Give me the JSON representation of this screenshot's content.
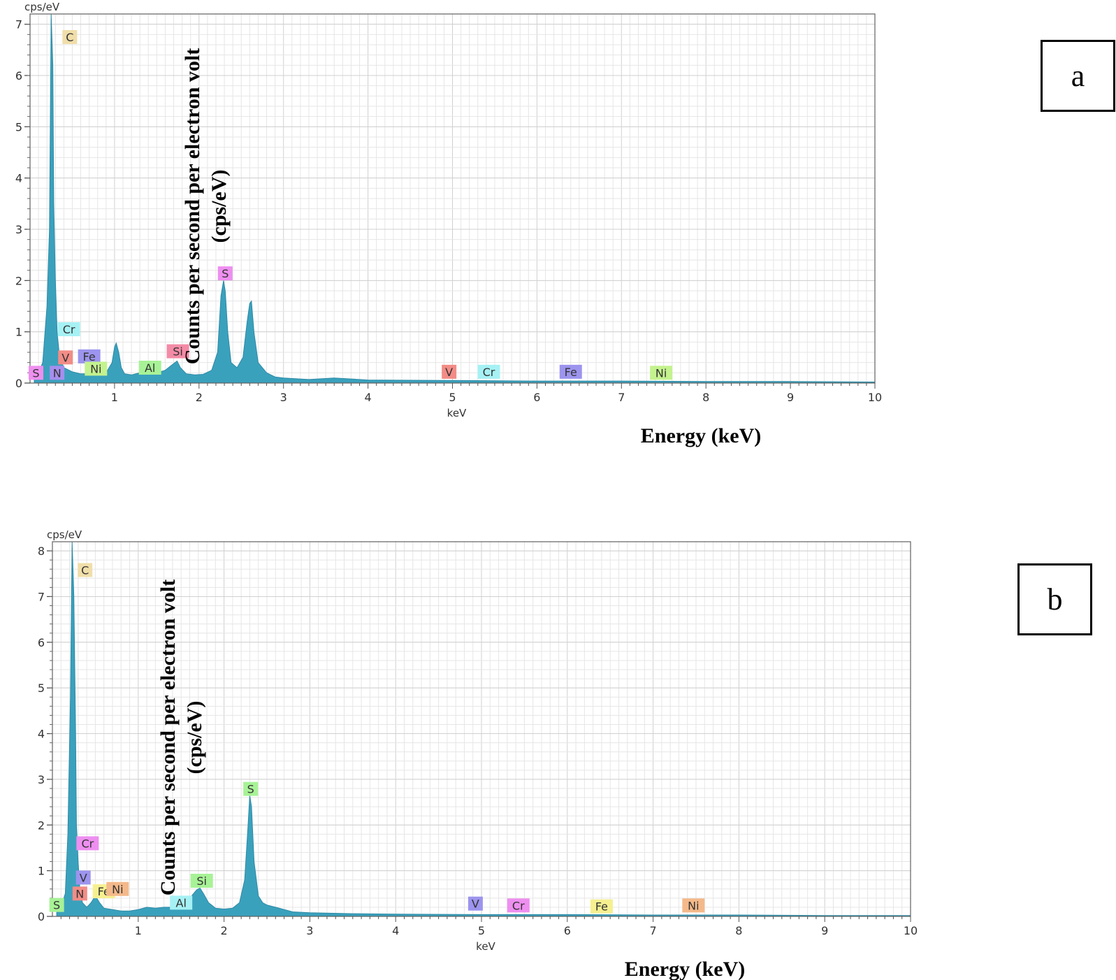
{
  "chart_data": [
    {
      "type": "area",
      "panel_label": "a",
      "unit_label": "cps/eV",
      "xlabel": "keV",
      "energy_caption": "Energy (keV)",
      "ylabel_overlay": [
        "Counts per second per electron volt",
        "(cps/eV)"
      ],
      "xlim": [
        0,
        10
      ],
      "ylim": [
        0,
        7.2
      ],
      "x_ticks": [
        1,
        2,
        3,
        4,
        5,
        6,
        7,
        8,
        9,
        10
      ],
      "y_ticks": [
        0,
        1,
        2,
        3,
        4,
        5,
        6,
        7
      ],
      "grid": true,
      "series": [
        {
          "name": "spectrum",
          "color": "#3aa1bd",
          "x": [
            0.05,
            0.1,
            0.15,
            0.2,
            0.23,
            0.25,
            0.27,
            0.28,
            0.3,
            0.32,
            0.35,
            0.4,
            0.5,
            0.6,
            0.7,
            0.8,
            0.9,
            0.97,
            1.0,
            1.02,
            1.05,
            1.08,
            1.12,
            1.2,
            1.3,
            1.4,
            1.5,
            1.6,
            1.7,
            1.74,
            1.78,
            1.85,
            1.95,
            2.05,
            2.15,
            2.22,
            2.26,
            2.29,
            2.31,
            2.34,
            2.38,
            2.45,
            2.52,
            2.57,
            2.6,
            2.62,
            2.65,
            2.7,
            2.8,
            2.9,
            3.0,
            3.3,
            3.6,
            4.0,
            5.0,
            6.0,
            7.0,
            8.0,
            9.0,
            10.0
          ],
          "y": [
            0.15,
            0.2,
            0.4,
            1.5,
            3.0,
            7.2,
            6.2,
            3.5,
            2.0,
            1.0,
            0.5,
            0.3,
            0.22,
            0.18,
            0.18,
            0.17,
            0.2,
            0.4,
            0.7,
            0.78,
            0.6,
            0.3,
            0.18,
            0.16,
            0.2,
            0.22,
            0.2,
            0.25,
            0.38,
            0.43,
            0.3,
            0.18,
            0.16,
            0.17,
            0.25,
            0.6,
            1.7,
            2.0,
            1.8,
            1.0,
            0.4,
            0.3,
            0.5,
            1.2,
            1.55,
            1.6,
            1.0,
            0.4,
            0.2,
            0.12,
            0.1,
            0.07,
            0.1,
            0.06,
            0.05,
            0.04,
            0.04,
            0.03,
            0.03,
            0.02
          ]
        }
      ],
      "annotations": [
        {
          "text": "C",
          "x": 0.47,
          "y": 6.75,
          "color": "#f0deaa"
        },
        {
          "text": "Cr",
          "x": 0.46,
          "y": 1.05,
          "color": "#a6f1f4"
        },
        {
          "text": "V",
          "x": 0.42,
          "y": 0.5,
          "color": "#f28c86"
        },
        {
          "text": "Fe",
          "x": 0.7,
          "y": 0.52,
          "color": "#9c94ee"
        },
        {
          "text": "S",
          "x": 0.07,
          "y": 0.2,
          "color": "#ee8ff0"
        },
        {
          "text": "N",
          "x": 0.32,
          "y": 0.2,
          "color": "#a68eee"
        },
        {
          "text": "Ni",
          "x": 0.78,
          "y": 0.28,
          "color": "#c3f28e"
        },
        {
          "text": "Al",
          "x": 1.42,
          "y": 0.3,
          "color": "#a7f296"
        },
        {
          "text": "Si",
          "x": 1.75,
          "y": 0.62,
          "color": "#f48ba6"
        },
        {
          "text": "S",
          "x": 2.31,
          "y": 2.14,
          "color": "#ee8ff0"
        },
        {
          "text": "V",
          "x": 4.96,
          "y": 0.22,
          "color": "#f28c86"
        },
        {
          "text": "Cr",
          "x": 5.43,
          "y": 0.22,
          "color": "#a6f1f4"
        },
        {
          "text": "Fe",
          "x": 6.4,
          "y": 0.22,
          "color": "#9c94ee"
        },
        {
          "text": "Ni",
          "x": 7.47,
          "y": 0.2,
          "color": "#c3f28e"
        }
      ]
    },
    {
      "type": "area",
      "panel_label": "b",
      "unit_label": "cps/eV",
      "xlabel": "keV",
      "energy_caption": "Energy (keV)",
      "ylabel_overlay": [
        "Counts per second per electron volt",
        "(cps/eV)"
      ],
      "xlim": [
        0,
        10
      ],
      "ylim": [
        0,
        8.2
      ],
      "x_ticks": [
        1,
        2,
        3,
        4,
        5,
        6,
        7,
        8,
        9,
        10
      ],
      "y_ticks": [
        0,
        1,
        2,
        3,
        4,
        5,
        6,
        7,
        8
      ],
      "grid": true,
      "series": [
        {
          "name": "spectrum",
          "color": "#3aa1bd",
          "x": [
            0.05,
            0.1,
            0.15,
            0.18,
            0.21,
            0.23,
            0.25,
            0.27,
            0.28,
            0.3,
            0.32,
            0.35,
            0.4,
            0.45,
            0.5,
            0.55,
            0.6,
            0.7,
            0.8,
            0.9,
            1.0,
            1.1,
            1.2,
            1.3,
            1.4,
            1.5,
            1.6,
            1.68,
            1.72,
            1.76,
            1.82,
            1.9,
            2.0,
            2.1,
            2.18,
            2.24,
            2.28,
            2.3,
            2.32,
            2.35,
            2.4,
            2.45,
            2.5,
            2.6,
            2.8,
            3.0,
            3.5,
            4.0,
            5.0,
            6.0,
            7.0,
            8.0,
            9.0,
            10.0
          ],
          "y": [
            0.15,
            0.2,
            0.5,
            1.8,
            4.8,
            8.2,
            7.0,
            4.0,
            2.0,
            1.2,
            0.6,
            0.3,
            0.2,
            0.3,
            0.45,
            0.3,
            0.18,
            0.15,
            0.12,
            0.12,
            0.15,
            0.2,
            0.18,
            0.2,
            0.2,
            0.22,
            0.4,
            0.58,
            0.62,
            0.5,
            0.3,
            0.18,
            0.16,
            0.18,
            0.3,
            0.8,
            2.0,
            2.65,
            2.4,
            1.2,
            0.45,
            0.3,
            0.25,
            0.2,
            0.1,
            0.08,
            0.06,
            0.05,
            0.04,
            0.04,
            0.03,
            0.03,
            0.02,
            0.02
          ]
        }
      ],
      "annotations": [
        {
          "text": "C",
          "x": 0.38,
          "y": 7.58,
          "color": "#f0deaa"
        },
        {
          "text": "Cr",
          "x": 0.41,
          "y": 1.6,
          "color": "#ee8ff0"
        },
        {
          "text": "V",
          "x": 0.36,
          "y": 0.85,
          "color": "#9c94ee"
        },
        {
          "text": "N",
          "x": 0.32,
          "y": 0.5,
          "color": "#f28c86"
        },
        {
          "text": "Fe",
          "x": 0.6,
          "y": 0.55,
          "color": "#f6f090"
        },
        {
          "text": "Ni",
          "x": 0.76,
          "y": 0.6,
          "color": "#f4b98a"
        },
        {
          "text": "S",
          "x": 0.05,
          "y": 0.25,
          "color": "#a7f296"
        },
        {
          "text": "Al",
          "x": 1.5,
          "y": 0.3,
          "color": "#a6f1f4"
        },
        {
          "text": "Si",
          "x": 1.74,
          "y": 0.78,
          "color": "#a7f296"
        },
        {
          "text": "S",
          "x": 2.31,
          "y": 2.79,
          "color": "#a7f296"
        },
        {
          "text": "V",
          "x": 4.93,
          "y": 0.28,
          "color": "#9c94ee"
        },
        {
          "text": "Cr",
          "x": 5.43,
          "y": 0.24,
          "color": "#ee8ff0"
        },
        {
          "text": "Fe",
          "x": 6.4,
          "y": 0.22,
          "color": "#f6f090"
        },
        {
          "text": "Ni",
          "x": 7.47,
          "y": 0.24,
          "color": "#f4b98a"
        }
      ]
    }
  ]
}
